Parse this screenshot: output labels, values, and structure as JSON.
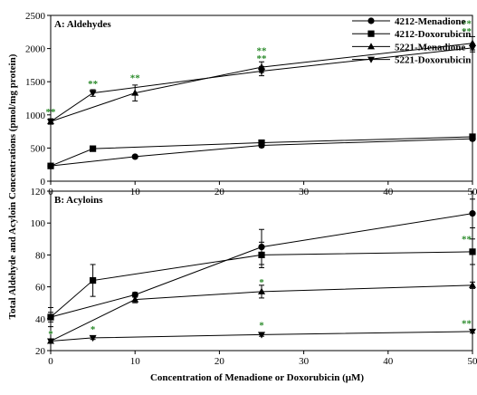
{
  "figure": {
    "ylabel": "Total Aldehyde and Acyloin Concentrations (pmol/mg protein)",
    "xlabel": "Concentration of Menadione or Doxorubicin (μM)"
  },
  "chart_data": [
    {
      "type": "line",
      "title": "A: Aldehydes",
      "x": [
        0,
        5,
        10,
        25,
        50
      ],
      "xlim": [
        0,
        50
      ],
      "ylim": [
        0,
        2500
      ],
      "xticks": [
        "0",
        "10",
        "20",
        "30",
        "40",
        "50"
      ],
      "yticks": [
        "0",
        "500",
        "1000",
        "1500",
        "2000",
        "2500"
      ],
      "legend_position": "top-right",
      "series": [
        {
          "name": "4212-Menadione",
          "marker": "circle",
          "points": [
            [
              0,
              230,
              20
            ],
            [
              10,
              370,
              20
            ],
            [
              25,
              540,
              30
            ],
            [
              50,
              640,
              25
            ]
          ]
        },
        {
          "name": "4212-Doxorubicin",
          "marker": "square",
          "points": [
            [
              0,
              230,
              20
            ],
            [
              5,
              490,
              20
            ],
            [
              25,
              580,
              25
            ],
            [
              50,
              670,
              25
            ]
          ]
        },
        {
          "name": "5221-Menadione",
          "marker": "triangle-up",
          "points": [
            [
              0,
              900,
              40
            ],
            [
              10,
              1330,
              120
            ],
            [
              25,
              1720,
              80
            ],
            [
              50,
              2080,
              100
            ]
          ]
        },
        {
          "name": "5221-Doxorubicin",
          "marker": "triangle-down",
          "points": [
            [
              0,
              900,
              40
            ],
            [
              5,
              1330,
              50
            ],
            [
              25,
              1660,
              70
            ],
            [
              50,
              2010,
              60
            ]
          ]
        }
      ],
      "significance": [
        {
          "x": 0,
          "y": 1000,
          "label": "**"
        },
        {
          "x": 5,
          "y": 1420,
          "label": "**"
        },
        {
          "x": 10,
          "y": 1510,
          "label": "**"
        },
        {
          "x": 25,
          "y": 1920,
          "label": "**"
        },
        {
          "x": 25,
          "y": 1800,
          "label": "**"
        },
        {
          "x": 50,
          "y": 2330,
          "label": "**"
        },
        {
          "x": 50,
          "y": 2210,
          "label": "**"
        }
      ]
    },
    {
      "type": "line",
      "title": "B: Acyloins",
      "x": [
        0,
        5,
        10,
        25,
        50
      ],
      "xlim": [
        0,
        50
      ],
      "ylim": [
        20,
        120
      ],
      "xticks": [
        "0",
        "10",
        "20",
        "30",
        "40",
        "50"
      ],
      "yticks": [
        "20",
        "40",
        "60",
        "80",
        "100",
        "120"
      ],
      "series": [
        {
          "name": "4212-Menadione",
          "marker": "circle",
          "points": [
            [
              0,
              41,
              3
            ],
            [
              10,
              55,
              1.5
            ],
            [
              25,
              85,
              11
            ],
            [
              50,
              106,
              9
            ]
          ]
        },
        {
          "name": "4212-Doxorubicin",
          "marker": "square",
          "points": [
            [
              0,
              41,
              6
            ],
            [
              5,
              64,
              10
            ],
            [
              25,
              80,
              8
            ],
            [
              50,
              82,
              8
            ]
          ]
        },
        {
          "name": "5221-Menadione",
          "marker": "triangle-up",
          "points": [
            [
              0,
              26,
              1
            ],
            [
              10,
              52,
              2
            ],
            [
              25,
              57,
              4
            ],
            [
              50,
              61,
              2
            ]
          ]
        },
        {
          "name": "5221-Doxorubicin",
          "marker": "triangle-down",
          "points": [
            [
              0,
              26,
              1
            ],
            [
              5,
              28,
              1
            ],
            [
              25,
              30,
              1
            ],
            [
              50,
              32,
              1
            ]
          ]
        }
      ],
      "significance": [
        {
          "x": 0,
          "y": 28.5,
          "label": "*"
        },
        {
          "x": 5,
          "y": 31.5,
          "label": "*"
        },
        {
          "x": 25,
          "y": 34,
          "label": "*"
        },
        {
          "x": 25,
          "y": 61,
          "label": "*"
        },
        {
          "x": 50,
          "y": 35,
          "label": "**"
        },
        {
          "x": 50,
          "y": 88,
          "label": "**"
        }
      ]
    }
  ]
}
